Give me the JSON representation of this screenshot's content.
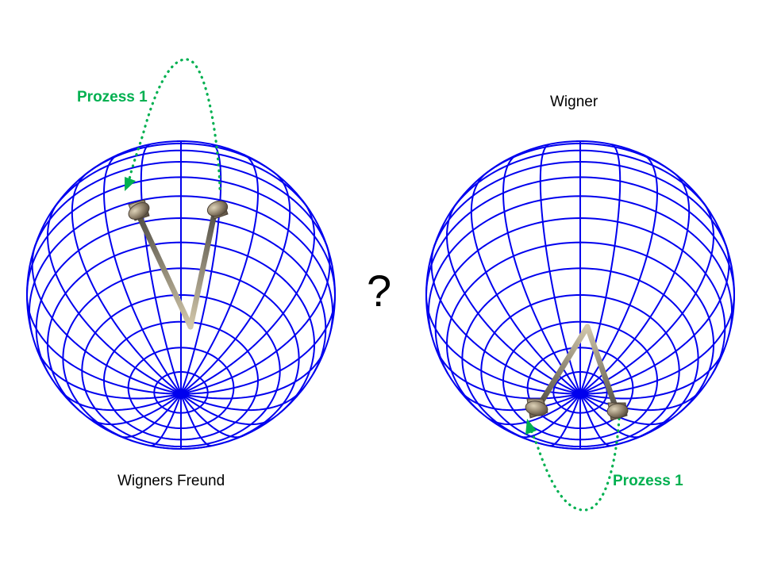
{
  "labels": {
    "left_process": "Prozess 1",
    "right_process": "Prozess 1",
    "right_title": "Wigner",
    "left_caption": "Wigners Freund",
    "question": "?"
  },
  "colors": {
    "grid": "#0000ee",
    "process": "#00b050",
    "text": "#000000",
    "arrow_dark": "#4d4a42",
    "arrow_light": "#cfc3a6"
  }
}
